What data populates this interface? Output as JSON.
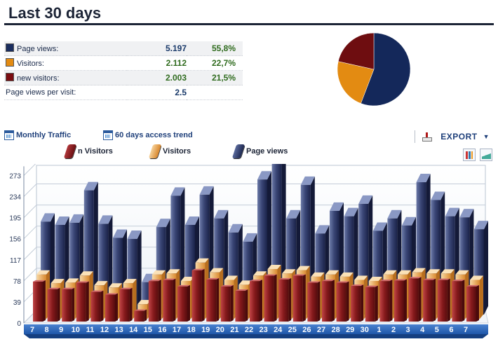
{
  "page": {
    "title": "Last 30 days"
  },
  "summary": {
    "rows": [
      {
        "label": "Page views:",
        "value": "5.197",
        "percent": "55,8%",
        "color": "#1a2d5e"
      },
      {
        "label": "Visitors:",
        "value": "2.112",
        "percent": "22,7%",
        "color": "#e38b12"
      },
      {
        "label": "new visitors:",
        "value": "2.003",
        "percent": "21,5%",
        "color": "#7a0c10"
      }
    ],
    "per_visit": {
      "label": "Page views per visit:",
      "value": "2.5"
    }
  },
  "toolbar": {
    "monthly_label": "Monthly Traffic",
    "trend_label": "60 days access trend",
    "export_label": "EXPORT",
    "calendar_icon": "calendar-icon",
    "printer_icon": "printer-icon"
  },
  "legend": {
    "items": [
      {
        "label": "n Visitors",
        "color": "#8a1a1c"
      },
      {
        "label": "Visitors",
        "color": "#e8a64a"
      },
      {
        "label": "Page views",
        "color": "#2e3a66"
      }
    ]
  },
  "chart_data": [
    {
      "type": "pie",
      "categories": [
        "Page views",
        "Visitors",
        "new visitors"
      ],
      "values": [
        55.8,
        22.7,
        21.5
      ],
      "colors": [
        "#14285a",
        "#e38b12",
        "#6e0d10"
      ]
    },
    {
      "type": "bar",
      "categories": [
        "7",
        "8",
        "9",
        "10",
        "11",
        "12",
        "13",
        "14",
        "15",
        "16",
        "17",
        "18",
        "19",
        "20",
        "21",
        "22",
        "23",
        "24",
        "25",
        "26",
        "27",
        "28",
        "29",
        "30",
        "1",
        "2",
        "3",
        "4",
        "5",
        "6",
        "7"
      ],
      "series": [
        {
          "name": "Page views",
          "values": [
            172,
            166,
            170,
            230,
            168,
            142,
            140,
            60,
            162,
            220,
            166,
            222,
            178,
            152,
            135,
            250,
            285,
            178,
            240,
            150,
            192,
            182,
            205,
            155,
            178,
            165,
            245,
            212,
            182,
            180,
            158
          ]
        },
        {
          "name": "Visitors",
          "values": [
            82,
            66,
            67,
            80,
            62,
            58,
            66,
            27,
            82,
            84,
            70,
            104,
            86,
            72,
            63,
            80,
            92,
            84,
            90,
            78,
            82,
            78,
            72,
            70,
            82,
            82,
            86,
            84,
            84,
            82,
            72
          ]
        },
        {
          "name": "n Visitors",
          "values": [
            74,
            60,
            60,
            72,
            55,
            50,
            60,
            20,
            75,
            77,
            65,
            95,
            78,
            65,
            57,
            75,
            85,
            78,
            85,
            72,
            75,
            72,
            66,
            64,
            75,
            76,
            80,
            77,
            77,
            75,
            65
          ]
        }
      ],
      "yticks": [
        0,
        39,
        78,
        117,
        156,
        195,
        234,
        273
      ],
      "ylim": [
        0,
        290
      ],
      "grid": true,
      "colors": {
        "Page views": "#2e3a66",
        "Visitors": "#e8a64a",
        "n Visitors": "#7e1518"
      }
    }
  ]
}
